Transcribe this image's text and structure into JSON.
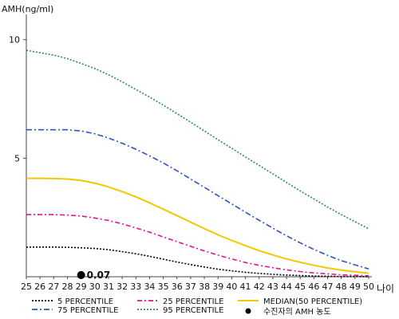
{
  "chart_data": {
    "type": "line",
    "ylabel": "AMH(ng/ml)",
    "xlabel": "나이",
    "xlim": [
      25,
      50
    ],
    "ylim": [
      0,
      11
    ],
    "x_ticks": [
      "25",
      "26",
      "27",
      "28",
      "29",
      "30",
      "31",
      "32",
      "33",
      "34",
      "35",
      "36",
      "37",
      "38",
      "39",
      "40",
      "41",
      "42",
      "43",
      "44",
      "45",
      "46",
      "47",
      "48",
      "49",
      "50"
    ],
    "y_ticks": [
      "5",
      "10"
    ],
    "x": [
      25,
      26,
      27,
      28,
      29,
      30,
      31,
      32,
      33,
      34,
      35,
      36,
      37,
      38,
      39,
      40,
      41,
      42,
      43,
      44,
      45,
      46,
      47,
      48,
      49,
      50
    ],
    "series": [
      {
        "name": "5 PERCENTILE",
        "color": "#000000",
        "dash": "2,2",
        "values": [
          1.25,
          1.25,
          1.25,
          1.24,
          1.22,
          1.19,
          1.14,
          1.06,
          0.97,
          0.86,
          0.74,
          0.62,
          0.51,
          0.41,
          0.32,
          0.25,
          0.19,
          0.14,
          0.1,
          0.07,
          0.05,
          0.03,
          0.02,
          0.01,
          0.01,
          0.0
        ]
      },
      {
        "name": "25 PERCENTILE",
        "color": "#e0148c",
        "dash": "6,3,2,3",
        "values": [
          2.62,
          2.62,
          2.62,
          2.6,
          2.56,
          2.48,
          2.37,
          2.23,
          2.06,
          1.88,
          1.68,
          1.48,
          1.28,
          1.09,
          0.91,
          0.75,
          0.6,
          0.48,
          0.38,
          0.29,
          0.22,
          0.16,
          0.12,
          0.08,
          0.06,
          0.04
        ]
      },
      {
        "name": "MEDIAN(50 PERCENTILE)",
        "color": "#f2c800",
        "dash": "",
        "values": [
          4.15,
          4.15,
          4.14,
          4.12,
          4.06,
          3.95,
          3.79,
          3.59,
          3.37,
          3.12,
          2.85,
          2.58,
          2.3,
          2.03,
          1.77,
          1.53,
          1.31,
          1.1,
          0.92,
          0.75,
          0.61,
          0.48,
          0.37,
          0.28,
          0.21,
          0.15
        ]
      },
      {
        "name": "75 PERCENTILE",
        "color": "#3050c8",
        "dash": "7,3,2,3",
        "values": [
          6.2,
          6.2,
          6.2,
          6.2,
          6.15,
          6.03,
          5.85,
          5.63,
          5.38,
          5.1,
          4.8,
          4.47,
          4.12,
          3.77,
          3.42,
          3.07,
          2.72,
          2.38,
          2.05,
          1.73,
          1.43,
          1.15,
          0.9,
          0.68,
          0.5,
          0.33
        ]
      },
      {
        "name": "95 PERCENTILE",
        "color": "#2e8b57",
        "dash": "2,2",
        "values": [
          9.55,
          9.45,
          9.35,
          9.2,
          9.0,
          8.78,
          8.52,
          8.22,
          7.9,
          7.58,
          7.24,
          6.88,
          6.52,
          6.15,
          5.78,
          5.42,
          5.05,
          4.7,
          4.34,
          3.98,
          3.62,
          3.28,
          2.94,
          2.62,
          2.32,
          2.03
        ]
      }
    ],
    "marker": {
      "name": "수진자의 AMH 농도",
      "x": 29,
      "y": 0.07,
      "label": "0.07",
      "color": "#000000"
    },
    "legend": {
      "placement": "bottom",
      "order": [
        "5 PERCENTILE",
        "25 PERCENTILE",
        "MEDIAN(50 PERCENTILE)",
        "75 PERCENTILE",
        "95 PERCENTILE",
        "수진자의 AMH 농도"
      ]
    }
  }
}
